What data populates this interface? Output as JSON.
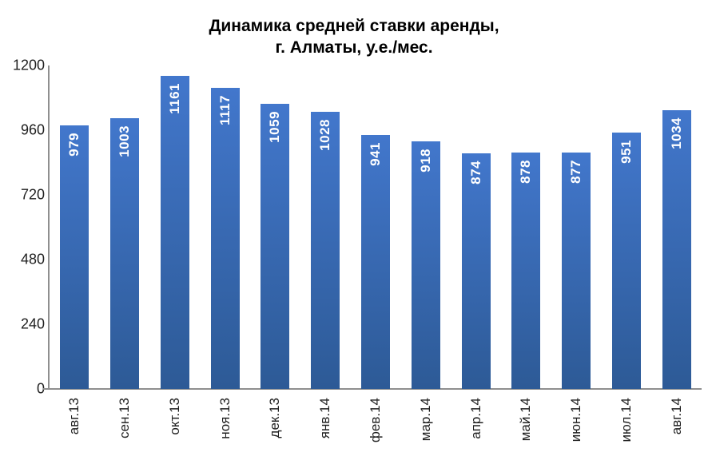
{
  "chart_data": {
    "type": "bar",
    "title": "Динамика средней ставки аренды, г. Алматы, у.е./мес.",
    "title_lines": [
      "Динамика средней ставки аренды,",
      "г. Алматы, у.е./мес."
    ],
    "categories": [
      "авг.13",
      "сен.13",
      "окт.13",
      "ноя.13",
      "дек.13",
      "янв.14",
      "фев.14",
      "мар.14",
      "апр.14",
      "май.14",
      "июн.14",
      "июл.14",
      "авг.14"
    ],
    "values": [
      979,
      1003,
      1161,
      1117,
      1059,
      1028,
      941,
      918,
      874,
      878,
      877,
      951,
      1034
    ],
    "xlabel": "",
    "ylabel": "",
    "ylim": [
      0,
      1200
    ],
    "yticks": [
      0,
      240,
      480,
      720,
      960,
      1200
    ],
    "grid": false,
    "legend_position": "none",
    "bar_value_labels": "inside-end, rotated 90°, white bold",
    "colors": {
      "bar_top": "#4277cc",
      "bar_bottom": "#2d5a96",
      "bar_label": "#ffffff",
      "axis_line": "#8f8f8f",
      "tick_text": "#1f1f1f",
      "title_text": "#000000",
      "background": "#ffffff"
    }
  }
}
